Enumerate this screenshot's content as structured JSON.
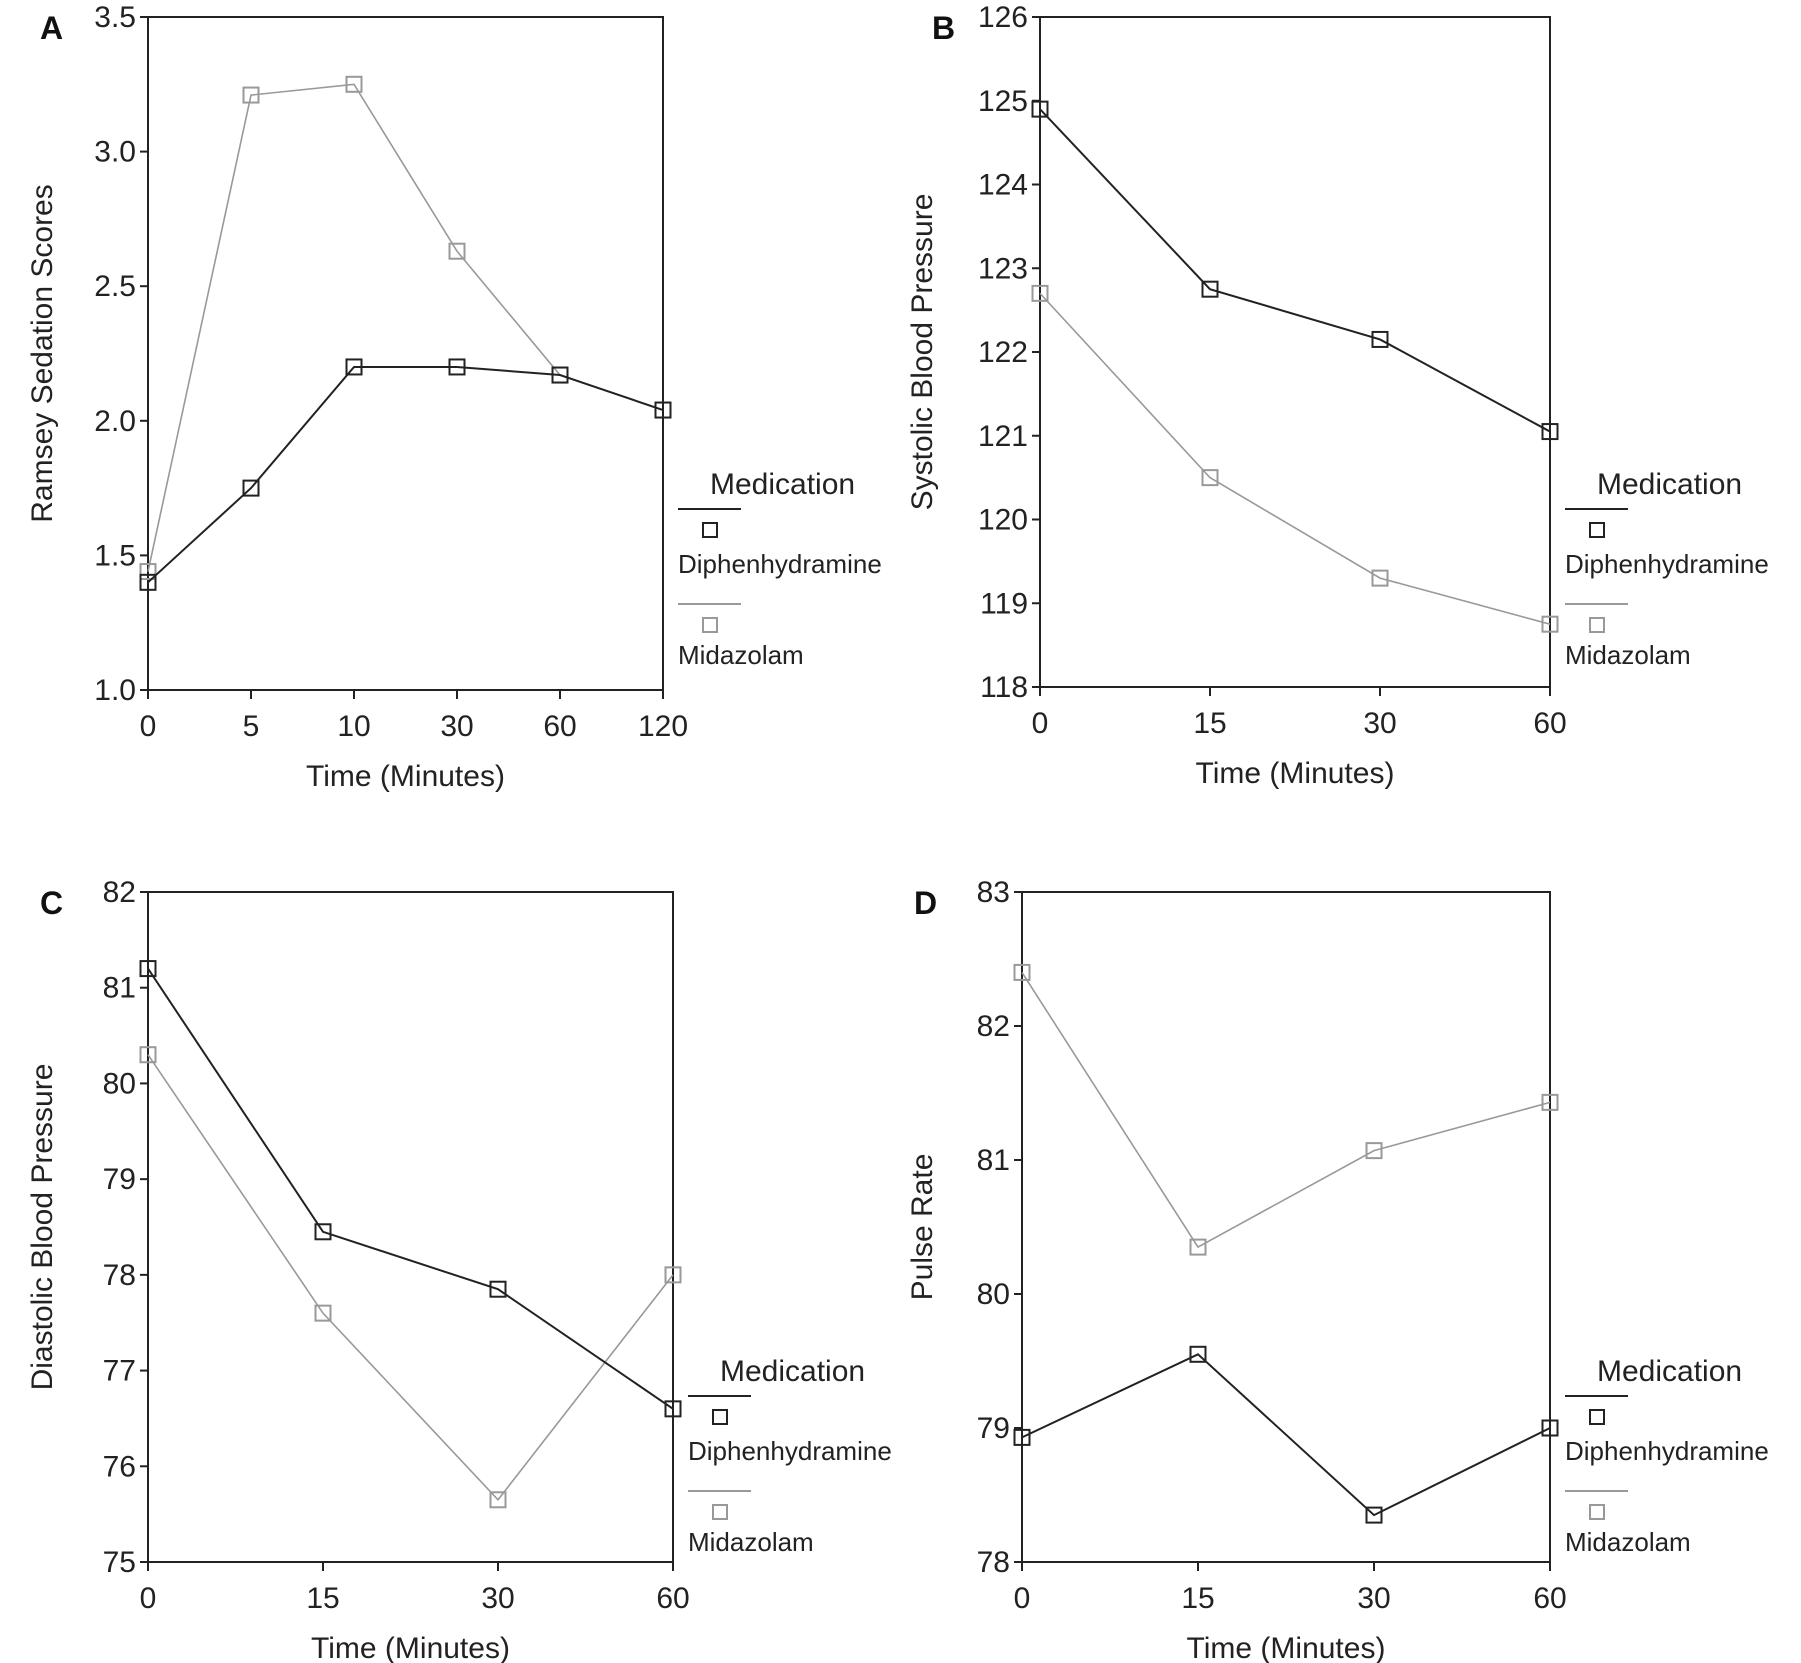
{
  "legend": {
    "title": "Medication",
    "entries": [
      "Diphenhydramine",
      "Midazolam"
    ]
  },
  "colors": {
    "Diphenhydramine": "#222222",
    "Midazolam": "#999999"
  },
  "chart_data": [
    {
      "panel": "A",
      "type": "line",
      "xlabel": "Time (Minutes)",
      "ylabel": "Ramsey Sedation Scores",
      "categories": [
        "0",
        "5",
        "10",
        "30",
        "60",
        "120"
      ],
      "ylim": [
        1.0,
        3.5
      ],
      "yticks": [
        "1.0",
        "1.5",
        "2.0",
        "2.5",
        "3.0",
        "3.5"
      ],
      "series": [
        {
          "name": "Diphenhydramine",
          "values": [
            1.4,
            1.75,
            2.2,
            2.2,
            2.17,
            2.04
          ]
        },
        {
          "name": "Midazolam",
          "values": [
            1.44,
            3.21,
            3.25,
            2.63,
            2.17,
            2.04
          ]
        }
      ]
    },
    {
      "panel": "B",
      "type": "line",
      "xlabel": "Time (Minutes)",
      "ylabel": "Systolic Blood Pressure",
      "categories": [
        "0",
        "15",
        "30",
        "60"
      ],
      "ylim": [
        118,
        126
      ],
      "yticks": [
        "118",
        "119",
        "120",
        "121",
        "122",
        "123",
        "124",
        "125",
        "126"
      ],
      "series": [
        {
          "name": "Diphenhydramine",
          "values": [
            124.9,
            122.75,
            122.15,
            121.05
          ]
        },
        {
          "name": "Midazolam",
          "values": [
            122.7,
            120.5,
            119.3,
            118.75
          ]
        }
      ]
    },
    {
      "panel": "C",
      "type": "line",
      "xlabel": "Time (Minutes)",
      "ylabel": "Diastolic Blood Pressure",
      "categories": [
        "0",
        "15",
        "30",
        "60"
      ],
      "ylim": [
        75,
        82
      ],
      "yticks": [
        "75",
        "76",
        "77",
        "78",
        "79",
        "80",
        "81",
        "82"
      ],
      "series": [
        {
          "name": "Diphenhydramine",
          "values": [
            81.2,
            78.45,
            77.85,
            76.6
          ]
        },
        {
          "name": "Midazolam",
          "values": [
            80.3,
            77.6,
            75.65,
            78.0
          ]
        }
      ]
    },
    {
      "panel": "D",
      "type": "line",
      "xlabel": "Time (Minutes)",
      "ylabel": "Pulse Rate",
      "categories": [
        "0",
        "15",
        "30",
        "60"
      ],
      "ylim": [
        78,
        83
      ],
      "yticks": [
        "78",
        "79",
        "80",
        "81",
        "82",
        "83"
      ],
      "series": [
        {
          "name": "Diphenhydramine",
          "values": [
            78.93,
            79.55,
            78.35,
            79.0
          ]
        },
        {
          "name": "Midazolam",
          "values": [
            82.4,
            80.35,
            81.07,
            81.43
          ]
        }
      ]
    }
  ]
}
